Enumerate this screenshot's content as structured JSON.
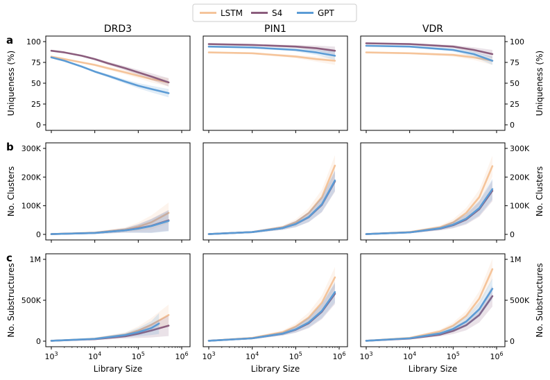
{
  "legend": {
    "entries": [
      {
        "name": "LSTM",
        "color": "#f5c49a"
      },
      {
        "name": "S4",
        "color": "#8b5d7d"
      },
      {
        "name": "GPT",
        "color": "#5b9bd5"
      }
    ],
    "placement": "top-center"
  },
  "columns": [
    "DRD3",
    "PIN1",
    "VDR"
  ],
  "rows": [
    {
      "letter": "a",
      "ylabel": "Uniqueness (%)"
    },
    {
      "letter": "b",
      "ylabel": "No. Clusters"
    },
    {
      "letter": "c",
      "ylabel": "No. Substructures"
    }
  ],
  "xlabel": "Library Size",
  "chart_data": [
    {
      "type": "line",
      "metric": "uniqueness",
      "target": "DRD3",
      "xscale": "log",
      "x_ticks": [
        "10^3",
        "10^4",
        "10^5",
        "10^6"
      ],
      "ylim": [
        0,
        100
      ],
      "y_ticks": [
        "0",
        "25",
        "50",
        "75",
        "100"
      ],
      "series": [
        {
          "name": "LSTM",
          "x": [
            1000,
            2000,
            5000,
            10000,
            20000,
            50000,
            100000,
            200000,
            500000
          ],
          "y": [
            82,
            79,
            75,
            72,
            68,
            63,
            59,
            55,
            51
          ]
        },
        {
          "name": "S4",
          "x": [
            1000,
            2000,
            5000,
            10000,
            20000,
            50000,
            100000,
            200000,
            500000
          ],
          "y": [
            89,
            87,
            83,
            79,
            74,
            68,
            63,
            58,
            51
          ]
        },
        {
          "name": "GPT",
          "x": [
            1000,
            2000,
            5000,
            10000,
            20000,
            50000,
            100000,
            200000,
            500000
          ],
          "y": [
            81,
            77,
            70,
            64,
            59,
            52,
            47,
            43,
            38
          ]
        }
      ]
    },
    {
      "type": "line",
      "metric": "uniqueness",
      "target": "PIN1",
      "xscale": "log",
      "x_ticks": [
        "10^3",
        "10^4",
        "10^5",
        "10^6"
      ],
      "ylim": [
        0,
        100
      ],
      "y_ticks": [
        "0",
        "25",
        "50",
        "75",
        "100"
      ],
      "series": [
        {
          "name": "LSTM",
          "x": [
            1000,
            10000,
            100000,
            300000,
            800000
          ],
          "y": [
            87,
            86,
            82,
            79,
            77
          ]
        },
        {
          "name": "S4",
          "x": [
            1000,
            10000,
            100000,
            300000,
            800000
          ],
          "y": [
            97,
            96,
            94,
            92,
            89
          ]
        },
        {
          "name": "GPT",
          "x": [
            1000,
            10000,
            100000,
            300000,
            800000
          ],
          "y": [
            94,
            93,
            90,
            87,
            83
          ]
        }
      ]
    },
    {
      "type": "line",
      "metric": "uniqueness",
      "target": "VDR",
      "xscale": "log",
      "x_ticks": [
        "10^3",
        "10^4",
        "10^5",
        "10^6"
      ],
      "ylim": [
        0,
        100
      ],
      "y_ticks": [
        "0",
        "25",
        "50",
        "75",
        "100"
      ],
      "series": [
        {
          "name": "LSTM",
          "x": [
            1000,
            10000,
            100000,
            300000,
            800000
          ],
          "y": [
            87,
            86,
            84,
            81,
            77
          ]
        },
        {
          "name": "S4",
          "x": [
            1000,
            10000,
            100000,
            300000,
            800000
          ],
          "y": [
            98,
            97,
            94,
            90,
            85
          ]
        },
        {
          "name": "GPT",
          "x": [
            1000,
            10000,
            100000,
            300000,
            800000
          ],
          "y": [
            95,
            94,
            90,
            85,
            77
          ]
        }
      ]
    },
    {
      "type": "line",
      "metric": "clusters",
      "target": "DRD3",
      "xscale": "log",
      "x_ticks": [
        "10^3",
        "10^4",
        "10^5",
        "10^6"
      ],
      "ylim": [
        0,
        300000
      ],
      "y_ticks": [
        "0",
        "100K",
        "200K",
        "300K"
      ],
      "series": [
        {
          "name": "LSTM",
          "x": [
            1000,
            10000,
            50000,
            100000,
            200000,
            500000
          ],
          "y": [
            1000,
            6000,
            17000,
            27000,
            42000,
            75000
          ]
        },
        {
          "name": "S4",
          "x": [
            1000,
            10000,
            50000,
            100000,
            200000,
            500000
          ],
          "y": [
            1000,
            5000,
            14000,
            21000,
            30000,
            49000
          ]
        },
        {
          "name": "GPT",
          "x": [
            1000,
            10000,
            50000,
            100000,
            200000,
            500000
          ],
          "y": [
            1000,
            5000,
            14000,
            20000,
            29000,
            47000
          ]
        }
      ]
    },
    {
      "type": "line",
      "metric": "clusters",
      "target": "PIN1",
      "xscale": "log",
      "x_ticks": [
        "10^3",
        "10^4",
        "10^5",
        "10^6"
      ],
      "ylim": [
        0,
        300000
      ],
      "y_ticks": [
        "0",
        "100K",
        "200K",
        "300K"
      ],
      "series": [
        {
          "name": "LSTM",
          "x": [
            1000,
            10000,
            50000,
            100000,
            200000,
            400000,
            800000
          ],
          "y": [
            1000,
            8000,
            25000,
            42000,
            75000,
            130000,
            240000
          ]
        },
        {
          "name": "S4",
          "x": [
            1000,
            10000,
            50000,
            100000,
            200000,
            400000,
            800000
          ],
          "y": [
            1000,
            8000,
            22000,
            36000,
            60000,
            103000,
            185000
          ]
        },
        {
          "name": "GPT",
          "x": [
            1000,
            10000,
            50000,
            100000,
            200000,
            400000,
            800000
          ],
          "y": [
            1000,
            8000,
            22000,
            36000,
            61000,
            105000,
            188000
          ]
        }
      ]
    },
    {
      "type": "line",
      "metric": "clusters",
      "target": "VDR",
      "xscale": "log",
      "x_ticks": [
        "10^3",
        "10^4",
        "10^5",
        "10^6"
      ],
      "ylim": [
        0,
        300000
      ],
      "y_ticks": [
        "0",
        "100K",
        "200K",
        "300K"
      ],
      "series": [
        {
          "name": "LSTM",
          "x": [
            1000,
            10000,
            50000,
            100000,
            200000,
            400000,
            800000
          ],
          "y": [
            1000,
            8000,
            25000,
            42000,
            75000,
            130000,
            238000
          ]
        },
        {
          "name": "S4",
          "x": [
            1000,
            10000,
            50000,
            100000,
            200000,
            400000,
            800000
          ],
          "y": [
            1000,
            7000,
            20000,
            32000,
            52000,
            88000,
            152000
          ]
        },
        {
          "name": "GPT",
          "x": [
            1000,
            10000,
            50000,
            100000,
            200000,
            400000,
            800000
          ],
          "y": [
            1000,
            7000,
            21000,
            34000,
            55000,
            92000,
            158000
          ]
        }
      ]
    },
    {
      "type": "line",
      "metric": "substructures",
      "target": "DRD3",
      "xscale": "log",
      "x_ticks": [
        "10^3",
        "10^4",
        "10^5",
        "10^6"
      ],
      "ylim": [
        0,
        1000000
      ],
      "y_ticks": [
        "0",
        "500K",
        "1M"
      ],
      "series": [
        {
          "name": "LSTM",
          "x": [
            1000,
            10000,
            50000,
            100000,
            200000,
            500000
          ],
          "y": [
            5000,
            30000,
            80000,
            130000,
            200000,
            320000
          ]
        },
        {
          "name": "S4",
          "x": [
            1000,
            10000,
            50000,
            100000,
            200000,
            500000
          ],
          "y": [
            5000,
            25000,
            60000,
            90000,
            130000,
            190000
          ]
        },
        {
          "name": "GPT",
          "x": [
            1000,
            10000,
            50000,
            100000,
            200000,
            300000
          ],
          "y": [
            5000,
            28000,
            75000,
            110000,
            160000,
            215000
          ]
        }
      ]
    },
    {
      "type": "line",
      "metric": "substructures",
      "target": "PIN1",
      "xscale": "log",
      "x_ticks": [
        "10^3",
        "10^4",
        "10^5",
        "10^6"
      ],
      "ylim": [
        0,
        1000000
      ],
      "y_ticks": [
        "0",
        "500K",
        "1M"
      ],
      "series": [
        {
          "name": "LSTM",
          "x": [
            1000,
            10000,
            50000,
            100000,
            200000,
            400000,
            800000
          ],
          "y": [
            5000,
            40000,
            110000,
            180000,
            290000,
            470000,
            780000
          ]
        },
        {
          "name": "S4",
          "x": [
            1000,
            10000,
            50000,
            100000,
            200000,
            400000,
            800000
          ],
          "y": [
            5000,
            35000,
            90000,
            140000,
            220000,
            360000,
            580000
          ]
        },
        {
          "name": "GPT",
          "x": [
            1000,
            10000,
            50000,
            100000,
            200000,
            400000,
            800000
          ],
          "y": [
            5000,
            35000,
            92000,
            145000,
            230000,
            370000,
            600000
          ]
        }
      ]
    },
    {
      "type": "line",
      "metric": "substructures",
      "target": "VDR",
      "xscale": "log",
      "x_ticks": [
        "10^3",
        "10^4",
        "10^5",
        "10^6"
      ],
      "ylim": [
        0,
        1000000
      ],
      "y_ticks": [
        "0",
        "500K",
        "1M"
      ],
      "series": [
        {
          "name": "LSTM",
          "x": [
            1000,
            10000,
            50000,
            100000,
            200000,
            400000,
            800000
          ],
          "y": [
            5000,
            40000,
            120000,
            190000,
            310000,
            520000,
            880000
          ]
        },
        {
          "name": "S4",
          "x": [
            1000,
            10000,
            50000,
            100000,
            200000,
            400000,
            800000
          ],
          "y": [
            5000,
            32000,
            80000,
            125000,
            195000,
            320000,
            550000
          ]
        },
        {
          "name": "GPT",
          "x": [
            1000,
            10000,
            50000,
            100000,
            200000,
            400000,
            800000
          ],
          "y": [
            5000,
            35000,
            95000,
            150000,
            240000,
            390000,
            640000
          ]
        }
      ]
    }
  ]
}
